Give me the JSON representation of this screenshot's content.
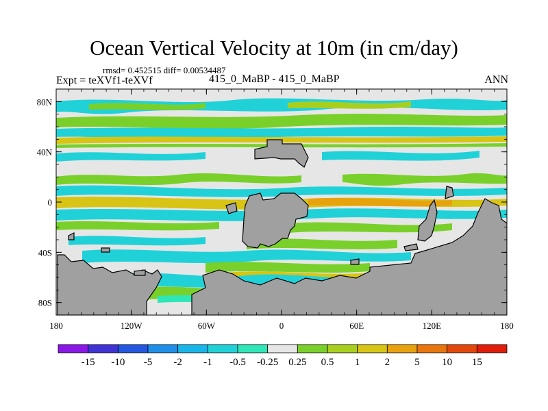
{
  "chart_data": {
    "type": "heatmap",
    "title": "Ocean Vertical Velocity at 10m (in cm/day)",
    "stats": "rmsd= 0.452515 diff= 0.00534487",
    "experiment": "Expt = teXVf1-teXVf",
    "runs": "415_0_MaBP - 415_0_MaBP",
    "season": "ANN",
    "x_ticks": [
      "180",
      "120W",
      "60W",
      "0",
      "60E",
      "120E",
      "180"
    ],
    "y_ticks": [
      "80N",
      "40N",
      "0",
      "40S",
      "80S"
    ],
    "xlim": [
      -180,
      180
    ],
    "ylim": [
      -90,
      90
    ],
    "colorbar": {
      "labels": [
        "-15",
        "-10",
        "-5",
        "-2",
        "-1",
        "-0.5",
        "-0.25",
        "0.25",
        "0.5",
        "1",
        "2",
        "5",
        "10",
        "15"
      ],
      "colors": [
        "#8a17e6",
        "#3f33d4",
        "#2457e0",
        "#1e8fe8",
        "#18b6e8",
        "#20d2d8",
        "#2ee6b8",
        "#e6e6e6",
        "#7ad02a",
        "#a8cf1e",
        "#d8c414",
        "#e8a20e",
        "#e8760c",
        "#e2480a",
        "#e01c0a"
      ]
    }
  },
  "colors": {
    "land": "#a0a0a0",
    "neutral": "#e6e6e6"
  }
}
